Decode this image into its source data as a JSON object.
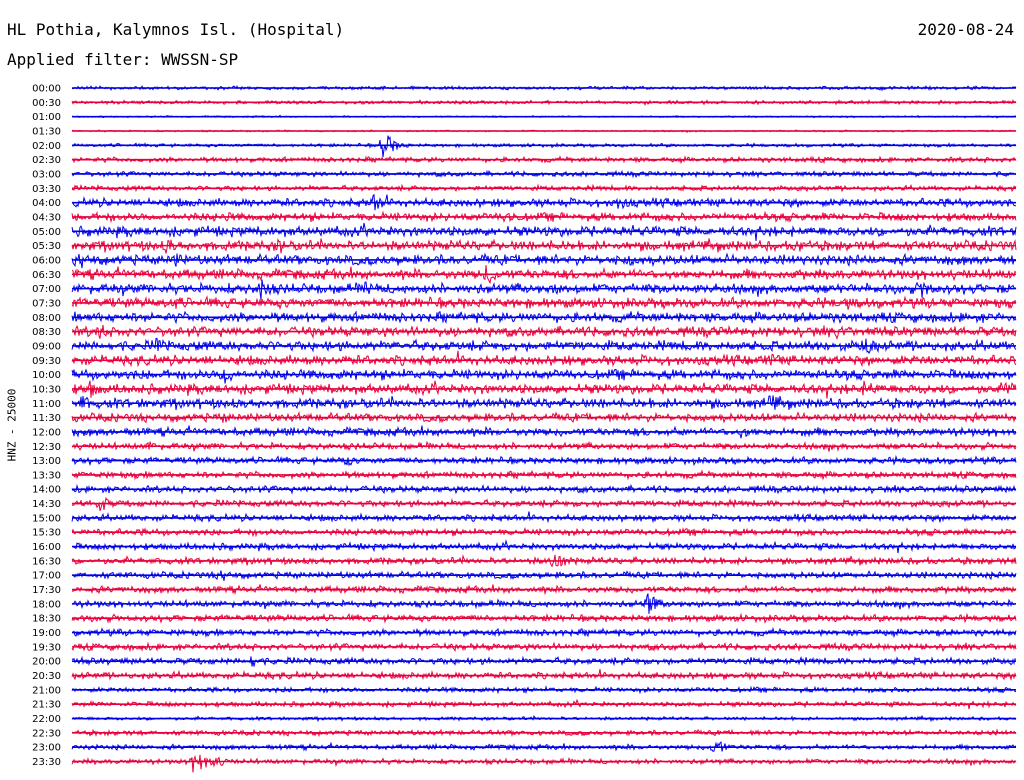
{
  "header": {
    "station": "HL Pothia, Kalymnos Isl. (Hospital)",
    "date": "2020-08-24",
    "filter": "Applied filter: WWSSN-SP",
    "ylabel": "HNZ - 25000"
  },
  "colors": {
    "blue": "#0000e6",
    "red": "#e6003c"
  },
  "chart_data": {
    "type": "line",
    "title": "HL Pothia, Kalymnos Isl. (Hospital)",
    "subtitle": "Applied filter: WWSSN-SP",
    "ylabel": "HNZ - 25000",
    "xlabel": "",
    "grid": false,
    "row_labels": [
      "00:00",
      "00:30",
      "01:00",
      "01:30",
      "02:00",
      "02:30",
      "03:00",
      "03:30",
      "04:00",
      "04:30",
      "05:00",
      "05:30",
      "06:00",
      "06:30",
      "07:00",
      "07:30",
      "08:00",
      "08:30",
      "09:00",
      "09:30",
      "10:00",
      "10:30",
      "11:00",
      "11:30",
      "12:00",
      "12:30",
      "13:00",
      "13:30",
      "14:00",
      "14:30",
      "15:00",
      "15:30",
      "16:00",
      "16:30",
      "17:00",
      "17:30",
      "18:00",
      "18:30",
      "19:00",
      "19:30",
      "20:00",
      "20:30",
      "21:00",
      "21:30",
      "22:00",
      "22:30",
      "23:00",
      "23:30"
    ],
    "row_colors": [
      "blue",
      "red"
    ],
    "noise_level": [
      2,
      2,
      1,
      1,
      2,
      3,
      3,
      3,
      5,
      5,
      6,
      6,
      6,
      6,
      6,
      6,
      6,
      6,
      6,
      6,
      6,
      6,
      6,
      5,
      5,
      4,
      4,
      4,
      4,
      4,
      4,
      4,
      4,
      4,
      4,
      4,
      4,
      4,
      4,
      4,
      4,
      4,
      3,
      3,
      2,
      3,
      3,
      3
    ],
    "events": [
      {
        "row": 4,
        "x": 0.33,
        "amp": 14
      },
      {
        "row": 8,
        "x": 0.32,
        "amp": 10
      },
      {
        "row": 8,
        "x": 0.58,
        "amp": 8
      },
      {
        "row": 9,
        "x": 0.46,
        "amp": 9
      },
      {
        "row": 9,
        "x": 0.16,
        "amp": 7
      },
      {
        "row": 11,
        "x": 0.1,
        "amp": 9
      },
      {
        "row": 11,
        "x": 0.22,
        "amp": 9
      },
      {
        "row": 11,
        "x": 0.77,
        "amp": 8
      },
      {
        "row": 12,
        "x": 0.01,
        "amp": 10
      },
      {
        "row": 12,
        "x": 0.11,
        "amp": 9
      },
      {
        "row": 12,
        "x": 0.59,
        "amp": 8
      },
      {
        "row": 13,
        "x": 0.44,
        "amp": 12
      },
      {
        "row": 14,
        "x": 0.2,
        "amp": 12
      },
      {
        "row": 14,
        "x": 0.31,
        "amp": 10
      },
      {
        "row": 14,
        "x": 0.51,
        "amp": 7
      },
      {
        "row": 14,
        "x": 0.9,
        "amp": 10
      },
      {
        "row": 15,
        "x": 0.11,
        "amp": 8
      },
      {
        "row": 15,
        "x": 0.82,
        "amp": 8
      },
      {
        "row": 17,
        "x": 0.03,
        "amp": 10
      },
      {
        "row": 17,
        "x": 0.81,
        "amp": 9
      },
      {
        "row": 18,
        "x": 0.09,
        "amp": 9
      },
      {
        "row": 18,
        "x": 0.84,
        "amp": 11
      },
      {
        "row": 19,
        "x": 0.74,
        "amp": 9
      },
      {
        "row": 20,
        "x": 0.16,
        "amp": 11
      },
      {
        "row": 21,
        "x": 0.02,
        "amp": 10
      },
      {
        "row": 21,
        "x": 0.84,
        "amp": 10
      },
      {
        "row": 21,
        "x": 0.99,
        "amp": 9
      },
      {
        "row": 22,
        "x": 0.01,
        "amp": 10
      },
      {
        "row": 22,
        "x": 0.74,
        "amp": 12
      },
      {
        "row": 23,
        "x": 0.16,
        "amp": 6
      },
      {
        "row": 24,
        "x": 0.71,
        "amp": 8
      },
      {
        "row": 25,
        "x": 0.08,
        "amp": 6
      },
      {
        "row": 26,
        "x": 0.29,
        "amp": 7
      },
      {
        "row": 29,
        "x": 0.03,
        "amp": 9
      },
      {
        "row": 33,
        "x": 0.51,
        "amp": 12
      },
      {
        "row": 34,
        "x": 0.16,
        "amp": 7
      },
      {
        "row": 36,
        "x": 0.61,
        "amp": 12
      },
      {
        "row": 40,
        "x": 0.19,
        "amp": 8
      },
      {
        "row": 46,
        "x": 0.68,
        "amp": 10
      },
      {
        "row": 47,
        "x": 0.13,
        "amp": 16
      },
      {
        "row": 47,
        "x": 0.15,
        "amp": 8
      }
    ]
  }
}
